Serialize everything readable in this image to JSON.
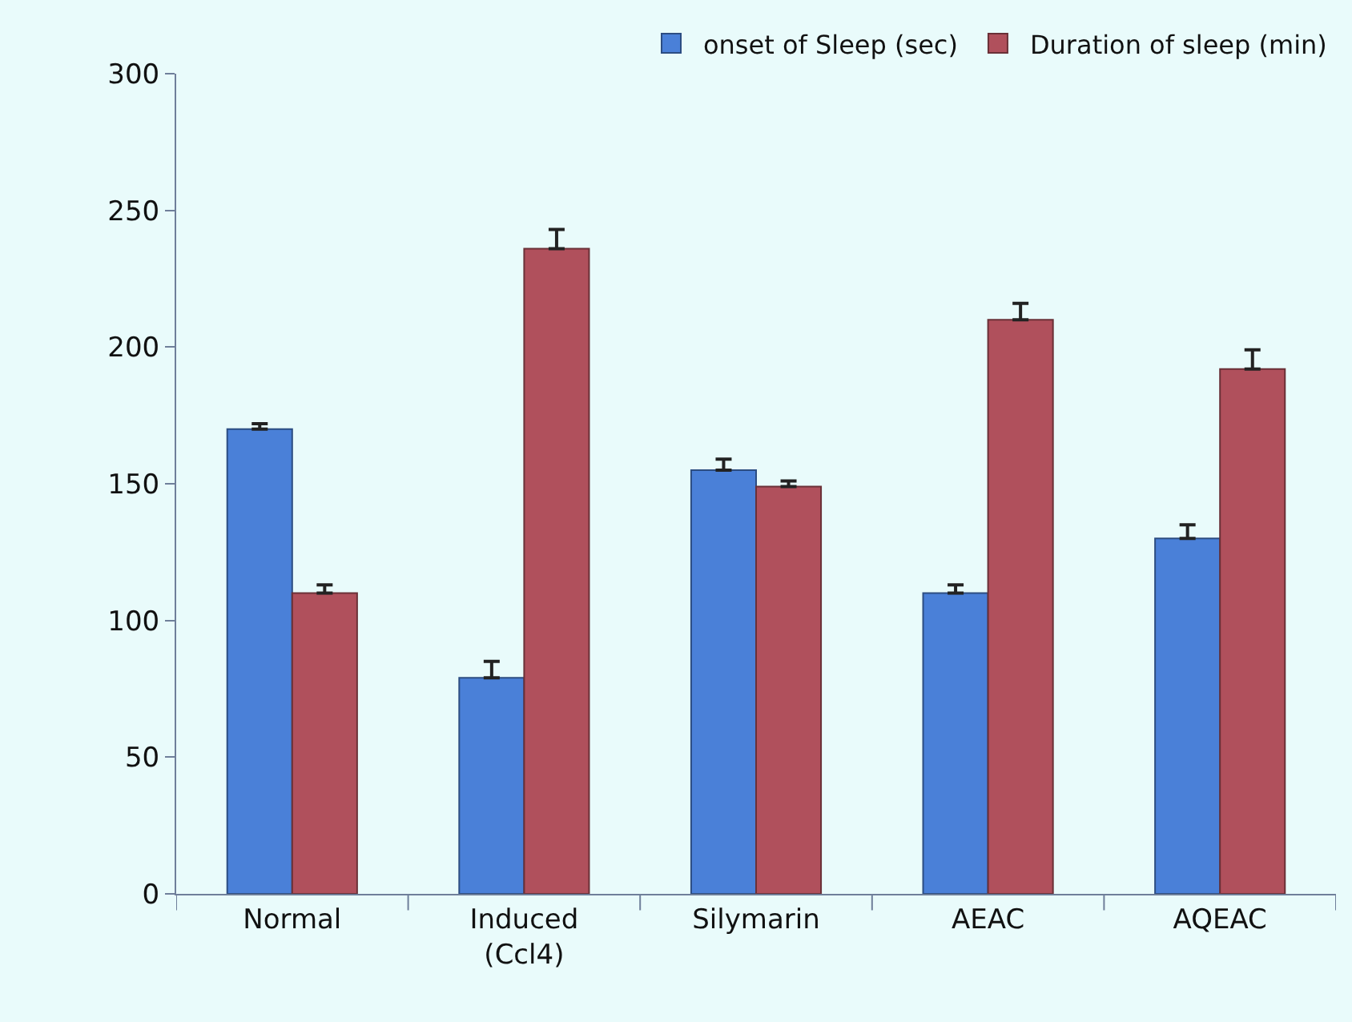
{
  "chart_data": {
    "type": "bar",
    "categories": [
      "Normal",
      "Induced\n(Ccl4)",
      "Silymarin",
      "AEAC",
      "AQEAC"
    ],
    "series": [
      {
        "name": "onset of Sleep (sec)",
        "color": "#4a80d8",
        "values": [
          170,
          79,
          155,
          110,
          130
        ],
        "errors": [
          [
            170,
            172
          ],
          [
            79,
            85
          ],
          [
            155,
            159
          ],
          [
            110,
            113
          ],
          [
            130,
            135
          ]
        ]
      },
      {
        "name": "Duration of sleep (min)",
        "color": "#b0505c",
        "values": [
          110,
          236,
          149,
          210,
          192
        ],
        "errors": [
          [
            110,
            113
          ],
          [
            236,
            243
          ],
          [
            149,
            151
          ],
          [
            210,
            216
          ],
          [
            192,
            199
          ]
        ]
      }
    ],
    "ylim": [
      0,
      300
    ],
    "yticks": [
      0,
      50,
      100,
      150,
      200,
      250,
      300
    ],
    "grid": false,
    "legend": "top right"
  }
}
